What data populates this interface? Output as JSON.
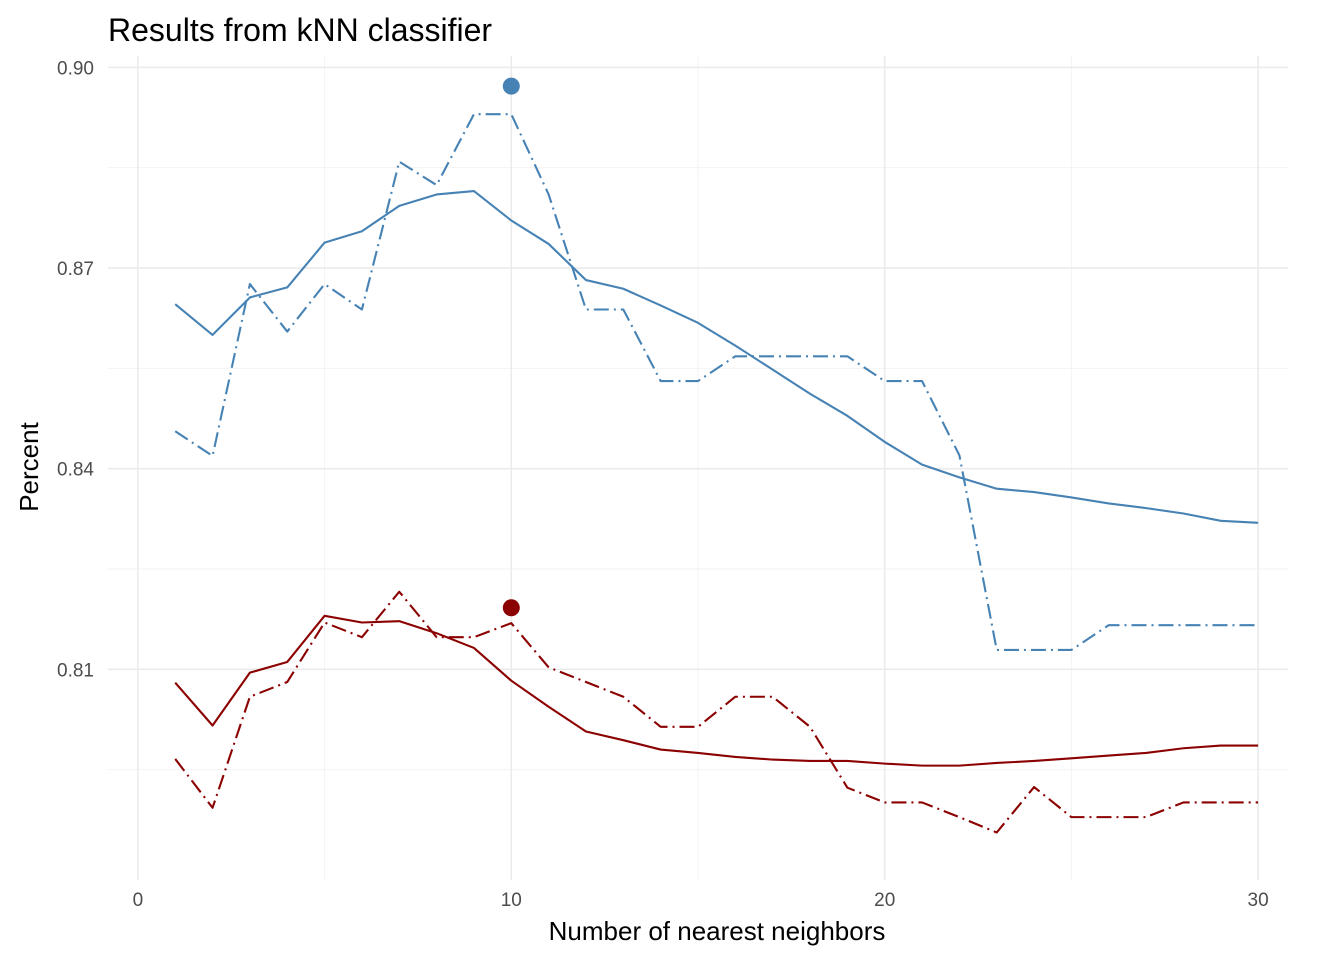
{
  "chart_data": {
    "type": "line",
    "title": "Results from kNN classifier",
    "xlabel": "Number of nearest neighbors",
    "ylabel": "Percent",
    "xlim": [
      0,
      30
    ],
    "ylim": [
      0.7785,
      0.9017
    ],
    "x_ticks": [
      0,
      10,
      20,
      30
    ],
    "x_tick_labels": [
      "0",
      "10",
      "20",
      "30"
    ],
    "y_ticks": [
      0.81,
      0.84,
      0.87,
      0.9
    ],
    "y_tick_labels": [
      "0.81",
      "0.84",
      "0.87",
      "0.90"
    ],
    "grid": true,
    "legend": "none",
    "series": [
      {
        "color": "#4682b4",
        "linestyle": "solid",
        "x": [
          1,
          2,
          3,
          4,
          5,
          6,
          7,
          8,
          9,
          10,
          11,
          12,
          13,
          14,
          15,
          16,
          17,
          18,
          19,
          20,
          21,
          22,
          23,
          24,
          25,
          26,
          27,
          28,
          29,
          30
        ],
        "values": [
          0.8646,
          0.86,
          0.8656,
          0.8671,
          0.8738,
          0.8755,
          0.8793,
          0.881,
          0.8815,
          0.8771,
          0.8736,
          0.8682,
          0.8669,
          0.8644,
          0.8618,
          0.8584,
          0.8548,
          0.8512,
          0.8479,
          0.844,
          0.8406,
          0.8387,
          0.837,
          0.8365,
          0.8357,
          0.8348,
          0.8341,
          0.8333,
          0.8322,
          0.8319
        ]
      },
      {
        "color": "#4682b4",
        "linestyle": "dashdot",
        "x": [
          1,
          2,
          3,
          4,
          5,
          6,
          7,
          8,
          9,
          10,
          11,
          12,
          13,
          14,
          15,
          16,
          17,
          18,
          19,
          20,
          21,
          22,
          23,
          24,
          25,
          26,
          27,
          28,
          29,
          30
        ],
        "values": [
          0.8456,
          0.8419,
          0.8676,
          0.8605,
          0.8676,
          0.8638,
          0.8859,
          0.8824,
          0.893,
          0.893,
          0.881,
          0.8638,
          0.8638,
          0.8531,
          0.8531,
          0.8568,
          0.8568,
          0.8568,
          0.8568,
          0.8531,
          0.8531,
          0.842,
          0.8129,
          0.8129,
          0.8129,
          0.8166,
          0.8166,
          0.8166,
          0.8166,
          0.8166
        ]
      },
      {
        "color": "#8b0000",
        "linestyle": "solid",
        "x": [
          1,
          2,
          3,
          4,
          5,
          6,
          7,
          8,
          9,
          10,
          11,
          12,
          13,
          14,
          15,
          16,
          17,
          18,
          19,
          20,
          21,
          22,
          23,
          24,
          25,
          26,
          27,
          28,
          29,
          30
        ],
        "values": [
          0.808,
          0.8016,
          0.8095,
          0.8111,
          0.818,
          0.817,
          0.8172,
          0.8154,
          0.8132,
          0.8083,
          0.8044,
          0.8007,
          0.7994,
          0.798,
          0.7975,
          0.7969,
          0.7965,
          0.7963,
          0.7963,
          0.7959,
          0.7956,
          0.7956,
          0.796,
          0.7963,
          0.7967,
          0.7971,
          0.7975,
          0.7982,
          0.7986,
          0.7986
        ]
      },
      {
        "color": "#8b0000",
        "linestyle": "dashdot",
        "x": [
          1,
          2,
          3,
          4,
          5,
          6,
          7,
          8,
          9,
          10,
          11,
          12,
          13,
          14,
          15,
          16,
          17,
          18,
          19,
          20,
          21,
          22,
          23,
          24,
          25,
          26,
          27,
          28,
          29,
          30
        ],
        "values": [
          0.7966,
          0.7893,
          0.8059,
          0.8081,
          0.817,
          0.8148,
          0.8216,
          0.8148,
          0.8148,
          0.8169,
          0.8103,
          0.8081,
          0.8059,
          0.8014,
          0.8014,
          0.8059,
          0.8059,
          0.8014,
          0.7923,
          0.7901,
          0.7901,
          0.7879,
          0.7856,
          0.7924,
          0.7879,
          0.7879,
          0.7879,
          0.7901,
          0.7901,
          0.7901
        ]
      }
    ],
    "highlight_points": [
      {
        "x": 10,
        "y": 0.8972,
        "color": "#4682b4"
      },
      {
        "x": 10,
        "y": 0.8192,
        "color": "#8b0000"
      }
    ]
  }
}
